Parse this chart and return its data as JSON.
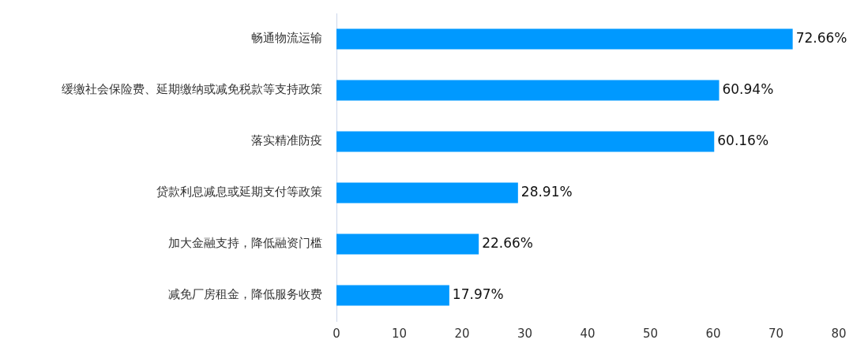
{
  "chart_data": {
    "type": "bar",
    "orientation": "horizontal",
    "categories": [
      "畅通物流运输",
      "缓缴社会保险费、延期缴纳或减免税款等支持政策",
      "落实精准防疫",
      "贷款利息减息或延期支付等政策",
      "加大金融支持，降低融资门槛",
      "减免厂房租金，降低服务收费"
    ],
    "values": [
      72.66,
      60.94,
      60.16,
      28.91,
      22.66,
      17.97
    ],
    "value_labels": [
      "72.66%",
      "60.94%",
      "60.16%",
      "28.91%",
      "22.66%",
      "17.97%"
    ],
    "color": "#0099ff",
    "xlim": [
      0,
      80
    ],
    "xticks": [
      0,
      10,
      20,
      30,
      40,
      50,
      60,
      70,
      80
    ],
    "grid": false,
    "legend": false
  }
}
